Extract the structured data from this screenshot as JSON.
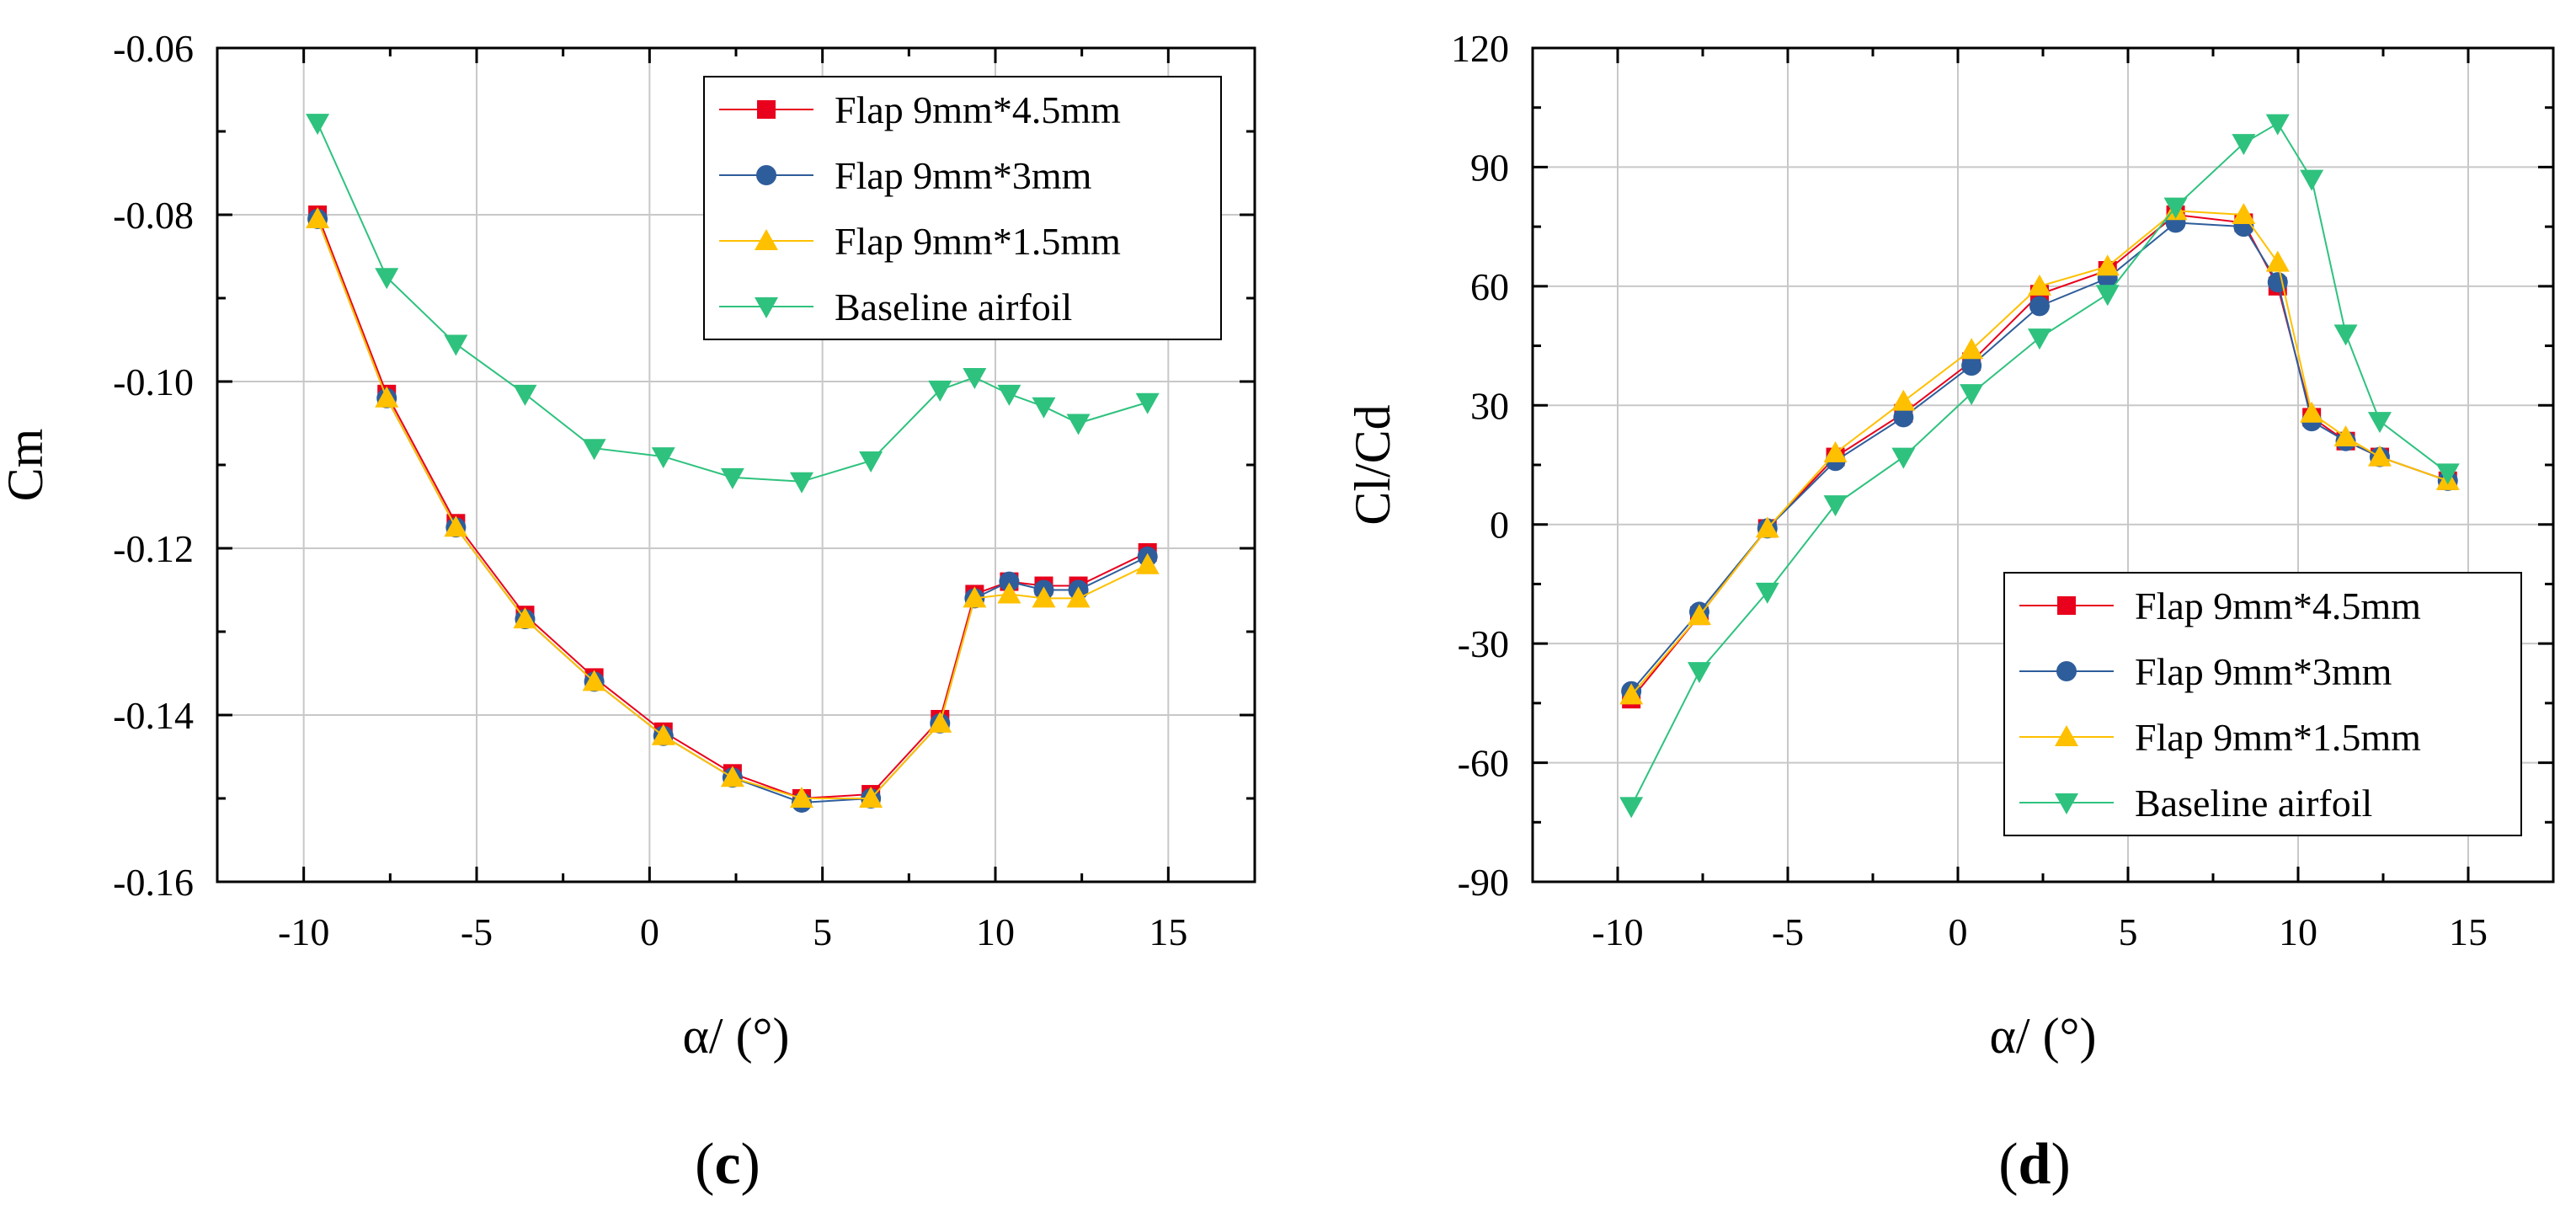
{
  "chart_data": [
    {
      "type": "line",
      "panel_label": {
        "open": "(",
        "letter": "c",
        "close": ")"
      },
      "xlabel": "α/ (°)",
      "ylabel": "Cm",
      "xlim": [
        -12.5,
        17.5
      ],
      "ylim": [
        -0.16,
        -0.06
      ],
      "xticks": [
        -10,
        -5,
        0,
        5,
        10,
        15
      ],
      "xtick_labels": [
        "-10",
        "-5",
        "0",
        "5",
        "10",
        "15"
      ],
      "yticks": [
        -0.16,
        -0.14,
        -0.12,
        -0.1,
        -0.08,
        -0.06
      ],
      "ytick_labels": [
        "-0.16",
        "-0.14",
        "-0.12",
        "-0.10",
        "-0.08",
        "-0.06"
      ],
      "grid": true,
      "legend_position": "top-right",
      "x": [
        -9.6,
        -7.6,
        -5.6,
        -3.6,
        -1.6,
        0.4,
        2.4,
        4.4,
        6.4,
        8.4,
        9.4,
        10.4,
        11.4,
        12.4,
        14.4
      ],
      "series": [
        {
          "name": "Flap 9mm*4.5mm",
          "color": "#e8001c",
          "marker": "square",
          "values": [
            -0.08,
            -0.1015,
            -0.117,
            -0.128,
            -0.1355,
            -0.142,
            -0.147,
            -0.15,
            -0.1495,
            -0.1405,
            -0.1255,
            -0.124,
            -0.1245,
            -0.1245,
            -0.1205
          ]
        },
        {
          "name": "Flap 9mm*3mm",
          "color": "#2e5d9b",
          "marker": "circle",
          "values": [
            -0.0805,
            -0.102,
            -0.1175,
            -0.1285,
            -0.136,
            -0.1425,
            -0.1475,
            -0.1505,
            -0.15,
            -0.141,
            -0.126,
            -0.124,
            -0.125,
            -0.125,
            -0.121
          ]
        },
        {
          "name": "Flap 9mm*1.5mm",
          "color": "#ffc000",
          "marker": "triangle-up",
          "values": [
            -0.0805,
            -0.102,
            -0.1175,
            -0.1285,
            -0.136,
            -0.1425,
            -0.1475,
            -0.15,
            -0.15,
            -0.141,
            -0.126,
            -0.1255,
            -0.126,
            -0.126,
            -0.122
          ]
        },
        {
          "name": "Baseline airfoil",
          "color": "#2ec27e",
          "marker": "triangle-down",
          "values": [
            -0.069,
            -0.0875,
            -0.0955,
            -0.1015,
            -0.108,
            -0.109,
            -0.1115,
            -0.112,
            -0.1095,
            -0.101,
            -0.0995,
            -0.1015,
            -0.103,
            -0.105,
            -0.1025
          ]
        }
      ]
    },
    {
      "type": "line",
      "panel_label": {
        "open": "(",
        "letter": "d",
        "close": ")"
      },
      "xlabel": "α/ (°)",
      "ylabel": "Cl/Cd",
      "xlim": [
        -12.5,
        17.5
      ],
      "ylim": [
        -90,
        120
      ],
      "xticks": [
        -10,
        -5,
        0,
        5,
        10,
        15
      ],
      "xtick_labels": [
        "-10",
        "-5",
        "0",
        "5",
        "10",
        "15"
      ],
      "yticks": [
        -90,
        -60,
        -30,
        0,
        30,
        60,
        90,
        120
      ],
      "ytick_labels": [
        "-90",
        "-60",
        "-30",
        "0",
        "30",
        "60",
        "90",
        "120"
      ],
      "grid": true,
      "legend_position": "bottom-right",
      "x": [
        -9.6,
        -7.6,
        -5.6,
        -3.6,
        -1.6,
        0.4,
        2.4,
        4.4,
        6.4,
        8.4,
        9.4,
        10.4,
        11.4,
        12.4,
        14.4
      ],
      "series": [
        {
          "name": "Flap 9mm*4.5mm",
          "color": "#e8001c",
          "marker": "square",
          "values": [
            -44,
            -23,
            -1,
            17,
            28,
            41,
            58,
            64,
            78,
            76,
            60,
            27,
            21,
            17,
            11
          ]
        },
        {
          "name": "Flap 9mm*3mm",
          "color": "#2e5d9b",
          "marker": "circle",
          "values": [
            -42,
            -22,
            -1,
            16,
            27,
            40,
            55,
            62,
            76,
            75,
            61,
            26,
            21,
            17,
            11
          ]
        },
        {
          "name": "Flap 9mm*1.5mm",
          "color": "#ffc000",
          "marker": "triangle-up",
          "values": [
            -43,
            -23,
            -1,
            18,
            31,
            44,
            60,
            65,
            79,
            78,
            66,
            28,
            22,
            17,
            11
          ]
        },
        {
          "name": "Baseline airfoil",
          "color": "#2ec27e",
          "marker": "triangle-down",
          "values": [
            -71,
            -37,
            -17,
            5,
            17,
            33,
            47,
            58,
            80,
            96,
            101,
            87,
            48,
            26,
            13
          ]
        }
      ]
    }
  ]
}
